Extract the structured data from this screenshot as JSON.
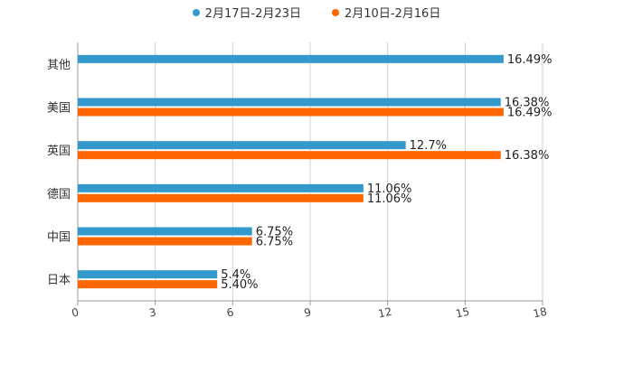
{
  "chart_data": {
    "type": "bar",
    "orientation": "horizontal",
    "categories": [
      "其他",
      "美国",
      "英国",
      "德国",
      "中国",
      "日本"
    ],
    "series": [
      {
        "name": "2月17日-2月23日",
        "color": "#3399cc",
        "values": [
          16.49,
          16.38,
          12.7,
          11.06,
          6.75,
          5.4
        ],
        "labels": [
          "16.49%",
          "16.38%",
          "12.7%",
          "11.06%",
          "6.75%",
          "5.4%"
        ]
      },
      {
        "name": "2月10日-2月16日",
        "color": "#ff6600",
        "values": [
          null,
          16.49,
          16.38,
          11.06,
          6.75,
          5.4
        ],
        "labels": [
          "",
          "16.49%",
          "16.38%",
          "11.06%",
          "6.75%",
          "5.40%"
        ]
      }
    ],
    "xlim": [
      0,
      18
    ],
    "xticks": [
      "0",
      "3",
      "6",
      "9",
      "12",
      "15",
      "18"
    ],
    "legend_position": "top-center",
    "grid": true
  }
}
